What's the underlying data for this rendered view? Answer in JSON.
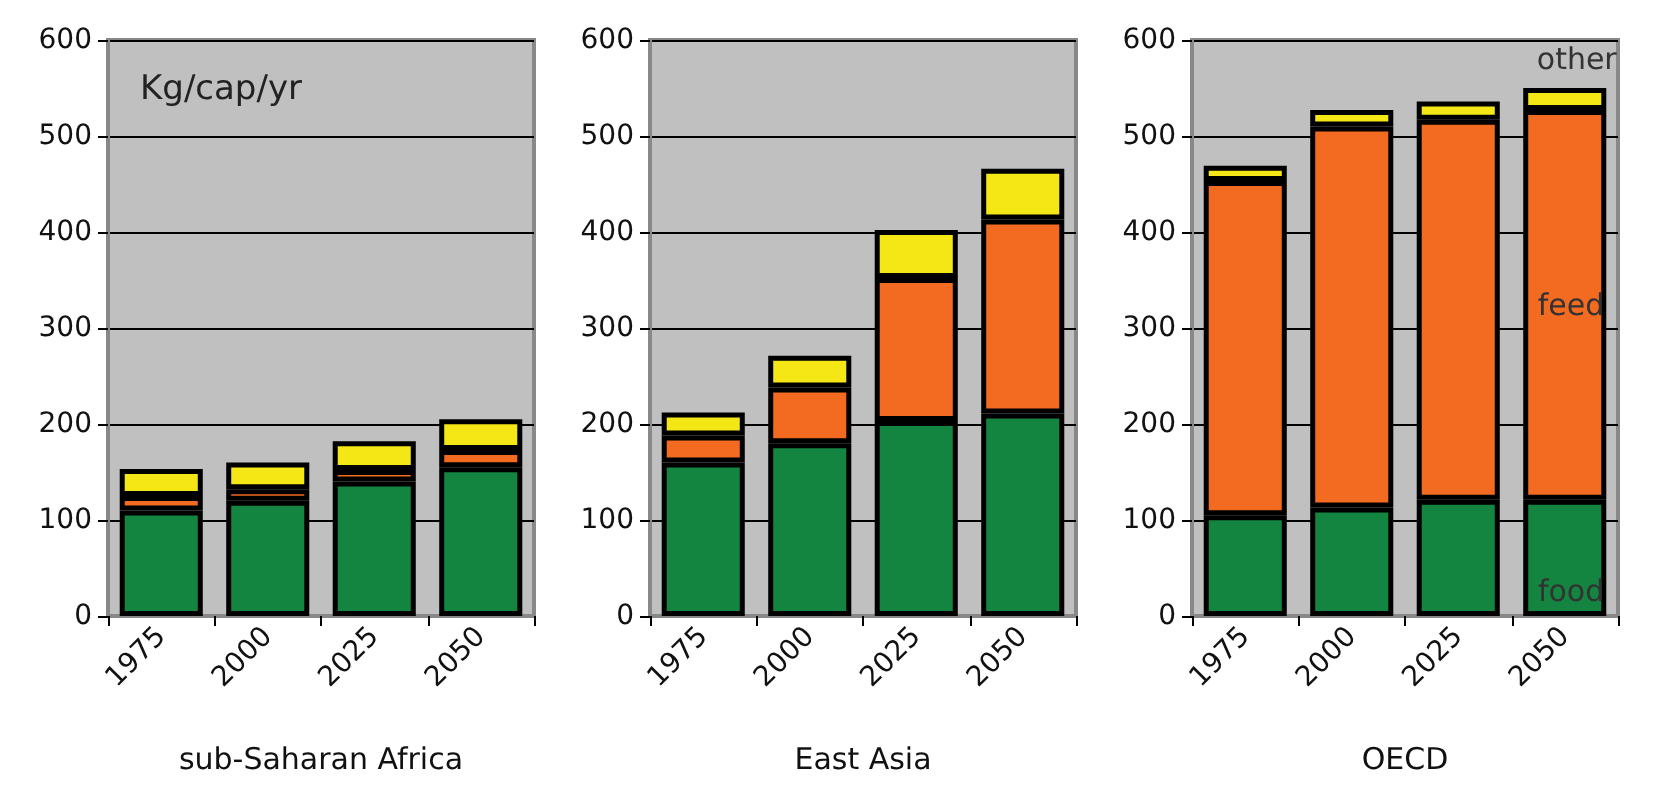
{
  "chart_data": [
    {
      "type": "bar",
      "xlabel": "sub-Saharan Africa",
      "annotations": [
        "Kg/cap/yr"
      ],
      "categories": [
        "1975",
        "2000",
        "2025",
        "2050"
      ],
      "stacked": true,
      "ylim": [
        0,
        600
      ],
      "yticks": [
        0,
        100,
        200,
        300,
        400,
        500,
        600
      ],
      "grid": "y",
      "series": [
        {
          "color": "#138540",
          "values": [
            110,
            120,
            140,
            155
          ]
        },
        {
          "color": "#f26b21",
          "values": [
            15,
            12,
            12,
            18
          ]
        },
        {
          "color": "#f5e716",
          "values": [
            28,
            28,
            30,
            32
          ]
        }
      ]
    },
    {
      "type": "bar",
      "xlabel": "East Asia",
      "categories": [
        "1975",
        "2000",
        "2025",
        "2050"
      ],
      "stacked": true,
      "ylim": [
        0,
        600
      ],
      "yticks": [
        0,
        100,
        200,
        300,
        400,
        500,
        600
      ],
      "grid": "y",
      "series": [
        {
          "color": "#138540",
          "values": [
            160,
            180,
            203,
            211
          ]
        },
        {
          "color": "#f26b21",
          "values": [
            28,
            58,
            149,
            202
          ]
        },
        {
          "color": "#f5e716",
          "values": [
            24,
            33,
            50,
            53
          ]
        }
      ]
    },
    {
      "type": "bar",
      "xlabel": "OECD",
      "categories": [
        "1975",
        "2000",
        "2025",
        "2050"
      ],
      "stacked": true,
      "ylim": [
        0,
        600
      ],
      "yticks": [
        0,
        100,
        200,
        300,
        400,
        500,
        600
      ],
      "grid": "y",
      "series": [
        {
          "name": "food",
          "color": "#138540",
          "values": [
            105,
            113,
            121,
            121
          ]
        },
        {
          "name": "feed",
          "color": "#f26b21",
          "values": [
            348,
            397,
            396,
            406
          ]
        },
        {
          "name": "other",
          "color": "#f5e716",
          "values": [
            16,
            17,
            19,
            23
          ]
        }
      ]
    }
  ]
}
